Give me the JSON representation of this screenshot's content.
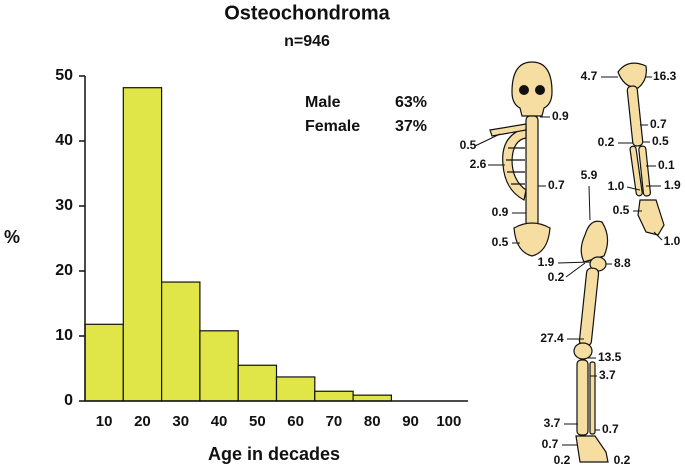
{
  "chart_data": {
    "type": "bar",
    "title": "Osteochondroma",
    "subtitle": "n=946",
    "x_label": "Age in decades",
    "y_label": "%",
    "categories": [
      "10",
      "20",
      "30",
      "40",
      "50",
      "60",
      "70",
      "80",
      "90",
      "100"
    ],
    "values": [
      11.8,
      48.2,
      18.3,
      10.8,
      5.5,
      3.7,
      1.5,
      0.9,
      0,
      0
    ],
    "color": "#e0e548",
    "ylim": [
      0,
      50
    ],
    "yticks": [
      0,
      10,
      20,
      30,
      40,
      50
    ],
    "annotations": [
      "Male",
      "63%",
      "Female",
      "37%"
    ],
    "skeleton_labels": [
      "0.9",
      "0.5",
      "2.6",
      "0.7",
      "0.9",
      "0.5",
      "4.7",
      "16.3",
      "0.7",
      "0.2",
      "0.5",
      "0.1",
      "1.0",
      "1.9",
      "0.5",
      "1.0",
      "5.9",
      "1.9",
      "8.8",
      "0.2",
      "27.4",
      "13.5",
      "3.7",
      "3.7",
      "0.7",
      "0.7",
      "0.2",
      "0.2"
    ]
  }
}
